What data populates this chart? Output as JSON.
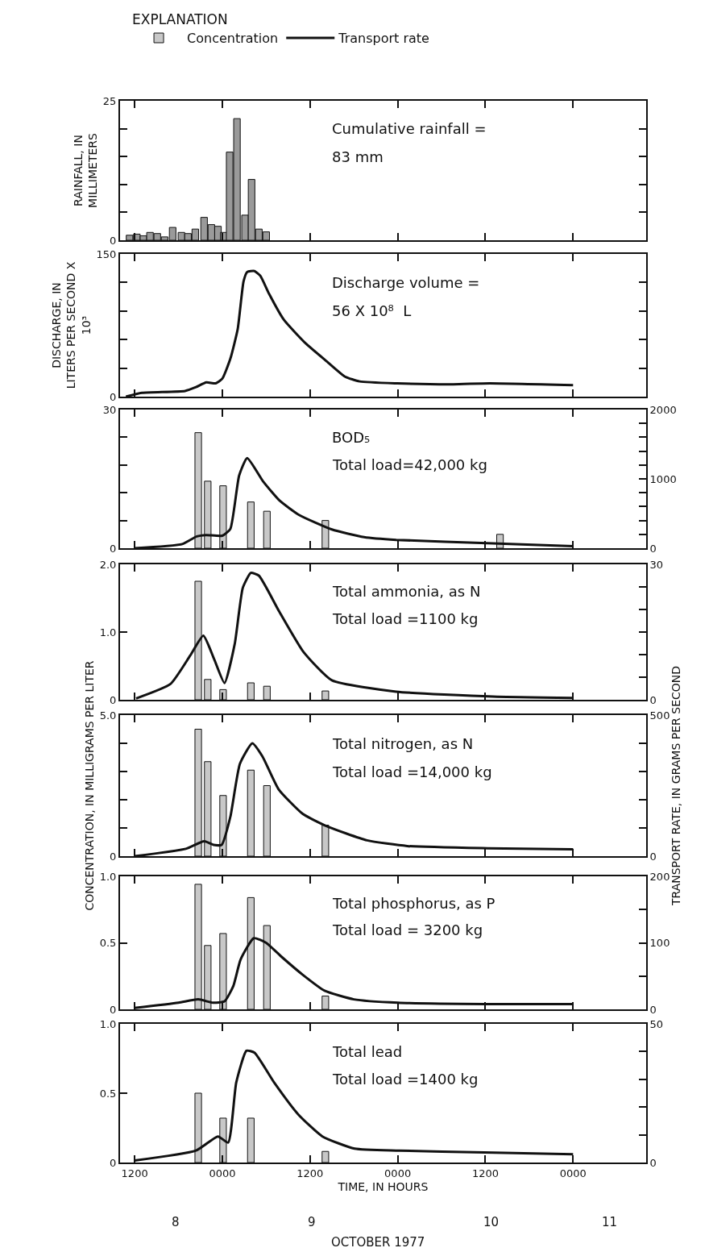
{
  "chart_data": [
    {
      "type": "bar",
      "ylabel": "RAINFALL, IN MILLIMETERS",
      "annotations": [
        "Cumulative rainfall =",
        "83 mm"
      ],
      "xlim": [
        "1977-10-08T10:00",
        "1977-10-11T10:00"
      ],
      "xticks": [
        {
          "value": "1977-10-08T12:00",
          "label": null
        },
        {
          "value": "1977-10-09T00:00",
          "label": null
        },
        {
          "value": "1977-10-09T12:00",
          "label": null
        },
        {
          "value": "1977-10-10T00:00",
          "label": null
        },
        {
          "value": "1977-10-10T12:00",
          "label": null
        },
        {
          "value": "1977-10-11T00:00",
          "label": null
        }
      ],
      "ylim": [
        0,
        25
      ],
      "yticks": [
        0,
        {
          "value": 5,
          "label": null
        },
        {
          "value": 10,
          "label": null
        },
        {
          "value": 15,
          "label": null
        },
        {
          "value": 20,
          "label": null
        },
        25
      ],
      "tick_labels": "y",
      "series": [
        {
          "color": "#9a9a9a",
          "x": [
            "1977-10-08T11:18",
            "1977-10-08T12:18",
            "1977-10-08T13:12",
            "1977-10-08T14:06",
            "1977-10-08T15:06",
            "1977-10-08T16:06",
            "1977-10-08T17:12",
            "1977-10-08T18:24",
            "1977-10-08T19:18",
            "1977-10-08T20:18",
            "1977-10-08T21:30",
            "1977-10-08T22:30",
            "1977-10-08T23:24",
            "1977-10-09T00:12",
            "1977-10-09T01:00",
            "1977-10-09T02:00",
            "1977-10-09T03:06",
            "1977-10-09T04:00",
            "1977-10-09T05:00",
            "1977-10-09T06:00"
          ],
          "values": [
            0.9,
            1.1,
            0.8,
            1.4,
            1.2,
            0.6,
            2.3,
            1.4,
            1.2,
            2.0,
            4.1,
            2.8,
            2.5,
            1.4,
            15.8,
            21.8,
            4.5,
            10.9,
            2.0,
            1.5
          ]
        }
      ]
    },
    {
      "type": "line",
      "ylabel": "DISCHARGE, IN LITERS PER SECOND X 10³",
      "annotations": [
        "Discharge volume =",
        "56 X 10⁸  L"
      ],
      "xlim": [
        "1977-10-08T10:00",
        "1977-10-11T10:00"
      ],
      "xticks": [
        {
          "value": "1977-10-08T12:00",
          "label": null
        },
        {
          "value": "1977-10-09T00:00",
          "label": null
        },
        {
          "value": "1977-10-09T12:00",
          "label": null
        },
        {
          "value": "1977-10-10T00:00",
          "label": null
        },
        {
          "value": "1977-10-10T12:00",
          "label": null
        },
        {
          "value": "1977-10-11T00:00",
          "label": null
        }
      ],
      "ylim": [
        0,
        150
      ],
      "yticks": [
        0,
        {
          "value": 30,
          "label": null
        },
        {
          "value": 60,
          "label": null
        },
        {
          "value": 90,
          "label": null
        },
        {
          "value": 120,
          "label": null
        },
        150
      ],
      "tick_labels": "y",
      "series": [
        {
          "color": "#111111",
          "x": [
            "1977-10-08T10:48",
            "1977-10-08T13:00",
            "1977-10-08T18:54",
            "1977-10-08T20:24",
            "1977-10-08T21:48",
            "1977-10-08T23:06",
            "1977-10-09T00:00",
            "1977-10-09T01:06",
            "1977-10-09T02:06",
            "1977-10-09T02:54",
            "1977-10-09T03:24",
            "1977-10-09T04:24",
            "1977-10-09T05:12",
            "1977-10-09T06:24",
            "1977-10-09T08:24",
            "1977-10-09T11:24",
            "1977-10-09T14:18",
            "1977-10-09T16:48",
            "1977-10-09T18:48",
            "1977-10-09T23:54",
            "1977-10-10T07:36",
            "1977-10-10T12:36",
            "1977-10-11T00:00"
          ],
          "values": [
            0,
            4,
            6,
            10,
            15,
            14,
            19,
            40,
            71,
            121,
            131,
            132,
            127,
            108,
            81,
            56,
            37,
            21,
            16,
            14,
            13,
            14,
            12
          ]
        }
      ]
    },
    {
      "type": "bar",
      "legend": "top",
      "legend_title": "EXPLANATION",
      "annotations": [
        "BOD₅",
        "Total load=42,000 kg"
      ],
      "xlim": [
        "1977-10-08T10:00",
        "1977-10-11T10:00"
      ],
      "xticks": [
        {
          "value": "1977-10-08T12:00",
          "label": null
        },
        {
          "value": "1977-10-09T00:00",
          "label": null
        },
        {
          "value": "1977-10-09T12:00",
          "label": null
        },
        {
          "value": "1977-10-10T00:00",
          "label": null
        },
        {
          "value": "1977-10-10T12:00",
          "label": null
        },
        {
          "value": "1977-10-11T00:00",
          "label": null
        }
      ],
      "ylim": [
        0,
        30
      ],
      "yticks": [
        0,
        {
          "value": 6,
          "label": null
        },
        {
          "value": 12,
          "label": null
        },
        {
          "value": 18,
          "label": null
        },
        {
          "value": 24,
          "label": null
        },
        30
      ],
      "y2lim": [
        0,
        2000
      ],
      "y2ticks": [
        0,
        {
          "value": 200,
          "label": null
        },
        {
          "value": 400,
          "label": null
        },
        {
          "value": 600,
          "label": null
        },
        {
          "value": 800,
          "label": null
        },
        1000,
        {
          "value": 1200,
          "label": null
        },
        {
          "value": 1400,
          "label": null
        },
        {
          "value": 1600,
          "label": null
        },
        {
          "value": 1800,
          "label": null
        },
        2000
      ],
      "tick_labels": "y",
      "series": [
        {
          "name": "Concentration",
          "color": "#c8c8c8",
          "x": [
            "1977-10-08T20:42",
            "1977-10-08T22:00",
            "1977-10-09T00:06",
            "1977-10-09T03:54",
            "1977-10-09T06:06",
            "1977-10-09T14:06",
            "1977-10-10T14:00"
          ],
          "values": [
            25,
            14.5,
            13.5,
            10,
            8,
            6,
            3
          ]
        },
        {
          "name": "Transport rate",
          "type": "line",
          "axis": "y2",
          "color": "#111111",
          "x": [
            "1977-10-08T12:00",
            "1977-10-08T18:30",
            "1977-10-08T20:30",
            "1977-10-08T21:48",
            "1977-10-09T00:00",
            "1977-10-09T01:06",
            "1977-10-09T02:18",
            "1977-10-09T03:24",
            "1977-10-09T05:36",
            "1977-10-09T07:48",
            "1977-10-09T10:30",
            "1977-10-09T15:00",
            "1977-10-09T19:24",
            "1977-10-09T23:48",
            "1977-10-10T13:00",
            "1977-10-11T00:00"
          ],
          "values": [
            0,
            60,
            170,
            190,
            180,
            280,
            1050,
            1300,
            960,
            690,
            480,
            270,
            160,
            120,
            70,
            30
          ]
        }
      ]
    },
    {
      "type": "bar",
      "annotations": [
        "Total ammonia, as N",
        "Total load =1100 kg"
      ],
      "xlim": [
        "1977-10-08T10:00",
        "1977-10-11T10:00"
      ],
      "xticks": [
        {
          "value": "1977-10-08T12:00",
          "label": null
        },
        {
          "value": "1977-10-09T00:00",
          "label": null
        },
        {
          "value": "1977-10-09T12:00",
          "label": null
        },
        {
          "value": "1977-10-10T00:00",
          "label": null
        },
        {
          "value": "1977-10-10T12:00",
          "label": null
        },
        {
          "value": "1977-10-11T00:00",
          "label": null
        }
      ],
      "ylim": [
        0,
        2
      ],
      "yticks": [
        0,
        {
          "value": 1,
          "label": "1.0"
        },
        {
          "value": 2,
          "label": "2.0"
        }
      ],
      "y2lim": [
        0,
        30
      ],
      "y2ticks": [
        0,
        {
          "value": 5,
          "label": null
        },
        {
          "value": 10,
          "label": null
        },
        {
          "value": 15,
          "label": null
        },
        {
          "value": 20,
          "label": null
        },
        {
          "value": 25,
          "label": null
        },
        30
      ],
      "tick_labels": "y",
      "series": [
        {
          "color": "#c8c8c8",
          "x": [
            "1977-10-08T20:42",
            "1977-10-08T22:00",
            "1977-10-09T00:06",
            "1977-10-09T03:54",
            "1977-10-09T06:06",
            "1977-10-09T14:06"
          ],
          "values": [
            1.75,
            0.3,
            0.15,
            0.25,
            0.2,
            0.13
          ]
        },
        {
          "type": "line",
          "axis": "y2",
          "color": "#111111",
          "x": [
            "1977-10-08T12:12",
            "1977-10-08T16:54",
            "1977-10-08T19:36",
            "1977-10-08T21:24",
            "1977-10-08T22:54",
            "1977-10-09T00:18",
            "1977-10-09T01:42",
            "1977-10-09T02:48",
            "1977-10-09T03:54",
            "1977-10-09T05:00",
            "1977-10-09T07:48",
            "1977-10-09T11:06",
            "1977-10-09T15:00",
            "1977-10-09T23:48",
            "1977-10-10T13:00",
            "1977-10-11T00:00"
          ],
          "values": [
            0.3,
            3.5,
            9.8,
            14.2,
            8.9,
            3.7,
            12.4,
            24.8,
            28.1,
            27.5,
            19.5,
            10.6,
            4.3,
            1.8,
            0.7,
            0.4
          ]
        }
      ]
    },
    {
      "type": "bar",
      "ylabel": "CONCENTRATION, IN MILLIGRAMS PER LITER",
      "y2label": "TRANSPORT RATE, IN GRAMS PER SECOND",
      "annotations": [
        "Total nitrogen, as N",
        "Total load =14,000 kg"
      ],
      "xlim": [
        "1977-10-08T10:00",
        "1977-10-11T10:00"
      ],
      "xticks": [
        {
          "value": "1977-10-08T12:00",
          "label": null
        },
        {
          "value": "1977-10-09T00:00",
          "label": null
        },
        {
          "value": "1977-10-09T12:00",
          "label": null
        },
        {
          "value": "1977-10-10T00:00",
          "label": null
        },
        {
          "value": "1977-10-10T12:00",
          "label": null
        },
        {
          "value": "1977-10-11T00:00",
          "label": null
        }
      ],
      "ylim": [
        0,
        5
      ],
      "yticks": [
        0,
        {
          "value": 1,
          "label": null
        },
        {
          "value": 2,
          "label": null
        },
        {
          "value": 3,
          "label": null
        },
        {
          "value": 4,
          "label": null
        },
        {
          "value": 5,
          "label": "5.0"
        }
      ],
      "y2lim": [
        0,
        500
      ],
      "y2ticks": [
        0,
        {
          "value": 100,
          "label": null
        },
        {
          "value": 200,
          "label": null
        },
        {
          "value": 300,
          "label": null
        },
        {
          "value": 400,
          "label": null
        },
        500
      ],
      "tick_labels": "y",
      "series": [
        {
          "color": "#c8c8c8",
          "x": [
            "1977-10-08T20:42",
            "1977-10-08T22:00",
            "1977-10-09T00:06",
            "1977-10-09T03:54",
            "1977-10-09T06:06",
            "1977-10-09T14:06"
          ],
          "values": [
            4.5,
            3.35,
            2.15,
            3.05,
            2.5,
            1.1
          ]
        },
        {
          "type": "line",
          "axis": "y2",
          "color": "#111111",
          "x": [
            "1977-10-08T12:00",
            "1977-10-08T19:00",
            "1977-10-08T21:30",
            "1977-10-08T22:48",
            "1977-10-08T23:54",
            "1977-10-09T01:06",
            "1977-10-09T02:24",
            "1977-10-09T04:06",
            "1977-10-09T05:30",
            "1977-10-09T07:42",
            "1977-10-09T11:00",
            "1977-10-09T14:18",
            "1977-10-09T19:48",
            "1977-10-10T01:18",
            "1977-10-10T12:18",
            "1977-10-11T00:00"
          ],
          "values": [
            0,
            26,
            53,
            40,
            40,
            140,
            327,
            400,
            353,
            237,
            150,
            106,
            56,
            36,
            28,
            24
          ]
        }
      ]
    },
    {
      "type": "bar",
      "annotations": [
        "Total phosphorus, as P",
        "Total load = 3200 kg"
      ],
      "xlim": [
        "1977-10-08T10:00",
        "1977-10-11T10:00"
      ],
      "xticks": [
        {
          "value": "1977-10-08T12:00",
          "label": null
        },
        {
          "value": "1977-10-09T00:00",
          "label": null
        },
        {
          "value": "1977-10-09T12:00",
          "label": null
        },
        {
          "value": "1977-10-10T00:00",
          "label": null
        },
        {
          "value": "1977-10-10T12:00",
          "label": null
        },
        {
          "value": "1977-10-11T00:00",
          "label": null
        }
      ],
      "ylim": [
        0,
        1
      ],
      "yticks": [
        0,
        0.5,
        {
          "value": 1,
          "label": "1.0"
        }
      ],
      "y2lim": [
        0,
        200
      ],
      "y2ticks": [
        0,
        {
          "value": 50,
          "label": null
        },
        100,
        {
          "value": 150,
          "label": null
        },
        200
      ],
      "tick_labels": "y",
      "series": [
        {
          "color": "#c8c8c8",
          "x": [
            "1977-10-08T20:42",
            "1977-10-08T22:00",
            "1977-10-09T00:06",
            "1977-10-09T03:54",
            "1977-10-09T06:06",
            "1977-10-09T14:06"
          ],
          "values": [
            0.94,
            0.48,
            0.57,
            0.84,
            0.63,
            0.1
          ]
        },
        {
          "type": "line",
          "axis": "y2",
          "color": "#111111",
          "x": [
            "1977-10-08T12:00",
            "1977-10-08T18:00",
            "1977-10-08T20:42",
            "1977-10-08T22:42",
            "1977-10-09T00:18",
            "1977-10-09T01:30",
            "1977-10-09T02:30",
            "1977-10-09T04:18",
            "1977-10-09T06:00",
            "1977-10-09T08:00",
            "1977-10-09T11:00",
            "1977-10-09T14:00",
            "1977-10-09T18:00",
            "1977-10-10T00:00",
            "1977-10-10T12:00",
            "1977-10-11T00:00"
          ],
          "values": [
            2,
            10,
            15,
            10,
            12,
            35,
            75,
            107,
            100,
            80,
            52,
            28,
            15,
            10,
            8,
            8
          ]
        }
      ]
    },
    {
      "type": "bar",
      "xlabel": "TIME, IN HOURS",
      "annotations": [
        "Total lead",
        "Total load =1400 kg",
        "8",
        "9",
        "10",
        "11",
        "OCTOBER 1977"
      ],
      "xlim": [
        "1977-10-08T10:00",
        "1977-10-11T10:00"
      ],
      "xticks": [
        {
          "value": "1977-10-08T12:00",
          "label": "1200"
        },
        {
          "value": "1977-10-09T00:00",
          "label": "0000"
        },
        {
          "value": "1977-10-09T12:00",
          "label": "1200"
        },
        {
          "value": "1977-10-10T00:00",
          "label": "0000"
        },
        {
          "value": "1977-10-10T12:00",
          "label": "1200"
        },
        {
          "value": "1977-10-11T00:00",
          "label": "0000"
        }
      ],
      "ylim": [
        0,
        1
      ],
      "yticks": [
        0,
        0.5,
        {
          "value": 1,
          "label": "1.0"
        }
      ],
      "y2lim": [
        0,
        50
      ],
      "y2ticks": [
        0,
        {
          "value": 10,
          "label": null
        },
        {
          "value": 20,
          "label": null
        },
        {
          "value": 30,
          "label": null
        },
        {
          "value": 40,
          "label": null
        },
        50
      ],
      "series": [
        {
          "color": "#c8c8c8",
          "x": [
            "1977-10-08T20:42",
            "1977-10-09T00:06",
            "1977-10-09T03:54",
            "1977-10-09T14:06"
          ],
          "values": [
            0.5,
            0.32,
            0.32,
            0.08
          ]
        },
        {
          "type": "line",
          "axis": "y2",
          "color": "#111111",
          "x": [
            "1977-10-08T12:00",
            "1977-10-08T20:24",
            "1977-10-08T23:24",
            "1977-10-09T00:48",
            "1977-10-09T01:54",
            "1977-10-09T03:18",
            "1977-10-09T04:24",
            "1977-10-09T07:06",
            "1977-10-09T10:24",
            "1977-10-09T13:42",
            "1977-10-09T18:06",
            "1977-10-10T00:12",
            "1977-10-10T11:48",
            "1977-10-11T00:00"
          ],
          "values": [
            0.7,
            4.3,
            9.4,
            7.2,
            28.8,
            40.3,
            39.6,
            28.8,
            17.3,
            9.4,
            5,
            4.3,
            3.6,
            3
          ]
        }
      ]
    }
  ]
}
